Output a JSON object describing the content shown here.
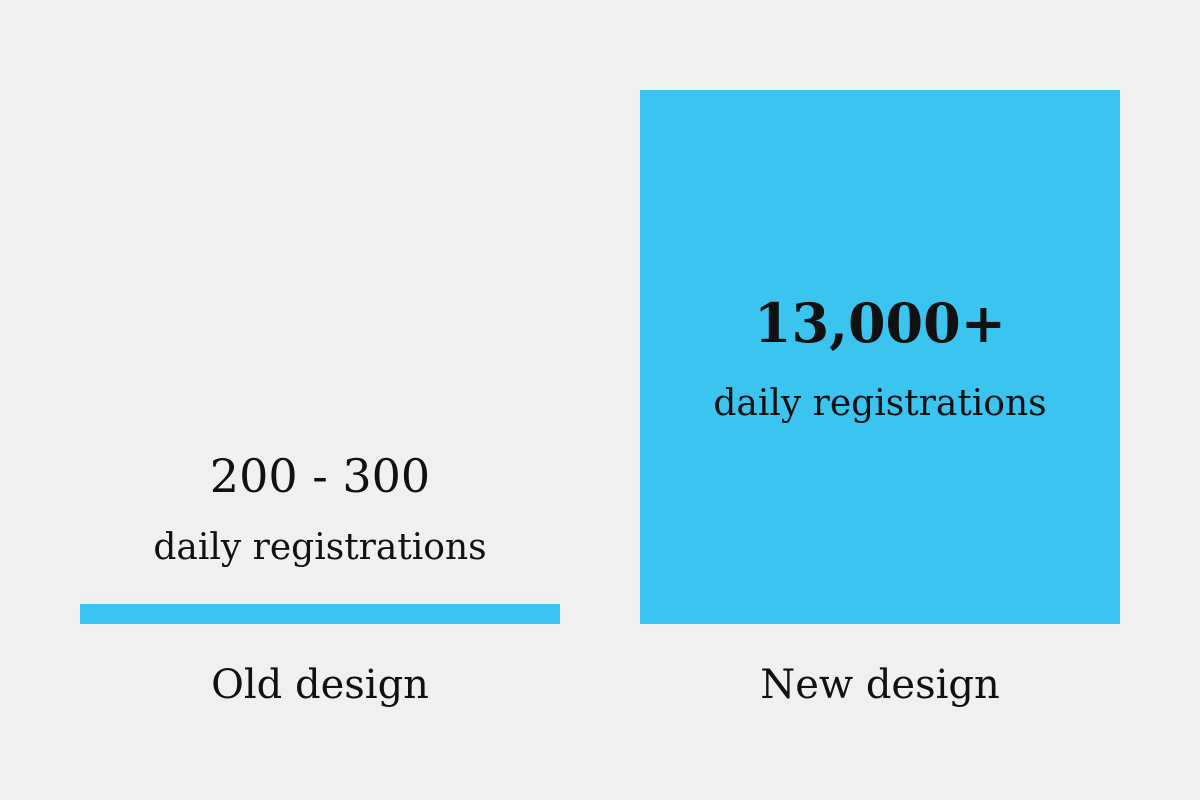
{
  "chart_data": {
    "type": "bar",
    "categories": [
      "Old design",
      "New design"
    ],
    "values": [
      250,
      13000
    ],
    "value_labels": [
      "200 - 300",
      "13,000+"
    ],
    "unit_label": "daily registrations",
    "ylim": [
      0,
      13000
    ],
    "grid": false,
    "bar_color": "#3ac4ef",
    "background_color": "#f0f0f0",
    "text_color": "#111111"
  }
}
